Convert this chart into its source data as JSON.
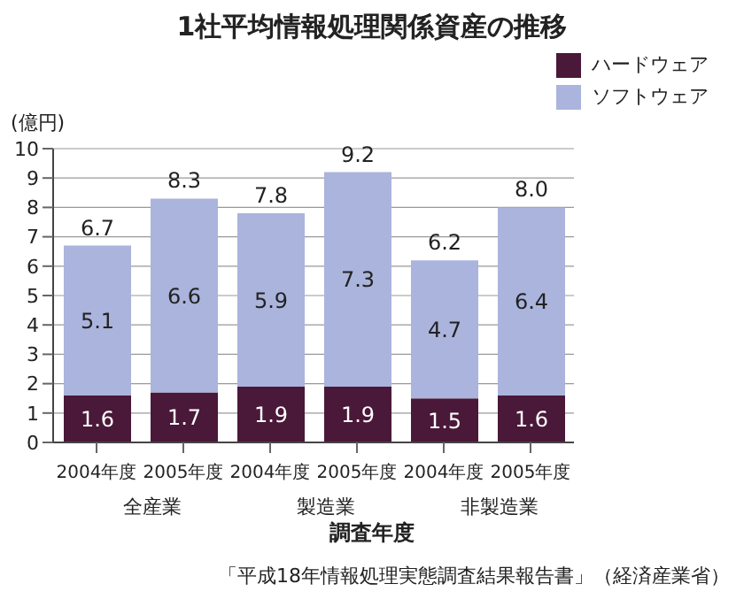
{
  "chart_data": {
    "type": "bar",
    "title": "1社平均情報処理関係資産の推移",
    "ylabel": "(億円)",
    "xlabel": "調査年度",
    "categories": [
      "2004年度",
      "2005年度",
      "2004年度",
      "2005年度",
      "2004年度",
      "2005年度"
    ],
    "series": [
      {
        "name": "ハードウェア",
        "color": "#4a1838",
        "values": [
          1.6,
          1.7,
          1.9,
          1.9,
          1.5,
          1.6
        ]
      },
      {
        "name": "ソフトウェア",
        "color": "#aab4dc",
        "values": [
          5.1,
          6.6,
          5.9,
          7.3,
          4.7,
          6.4
        ]
      }
    ],
    "stacked": true,
    "data_labels": true,
    "totals": [
      "6.7",
      "8.3",
      "7.8",
      "9.2",
      "6.2",
      "8.0"
    ],
    "ylim": [
      0,
      10
    ],
    "yticks": [
      0,
      1,
      2,
      3,
      4,
      5,
      6,
      7,
      8,
      9,
      10
    ],
    "grid": "y",
    "legend": "top right",
    "annotations": [
      "全産業",
      "製造業",
      "非製造業",
      "「平成18年情報処理実態調査結果報告書」（経済産業省）"
    ]
  }
}
